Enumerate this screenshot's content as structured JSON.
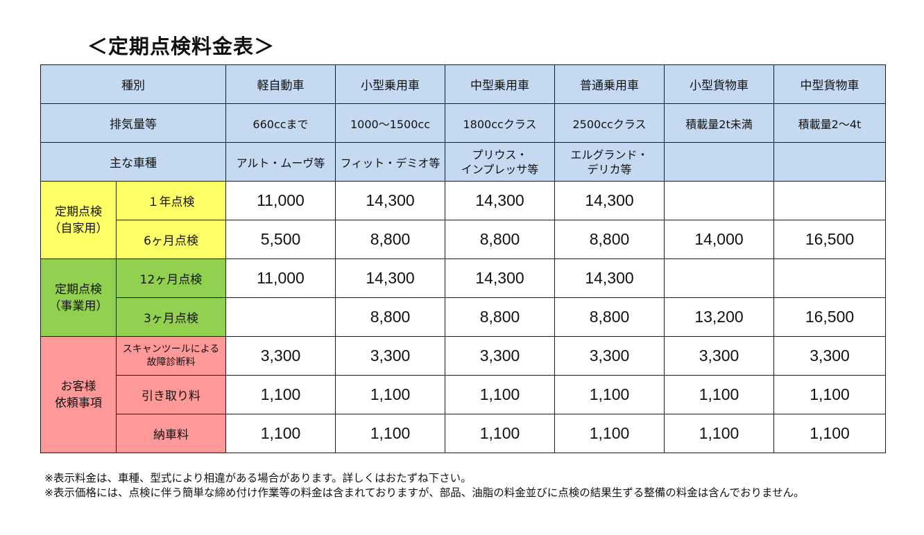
{
  "title": "＜定期点検料金表＞",
  "header": {
    "category_label": "種別",
    "displacement_label": "排気量等",
    "models_label": "主な車種",
    "columns": [
      {
        "type": "軽自動車",
        "displacement": "660ccまで",
        "models_line1": "アルト・ムーヴ等",
        "models_line2": ""
      },
      {
        "type": "小型乗用車",
        "displacement": "1000～1500cc",
        "models_line1": "フィット・デミオ等",
        "models_line2": ""
      },
      {
        "type": "中型乗用車",
        "displacement": "1800ccクラス",
        "models_line1": "プリウス・",
        "models_line2": "インプレッサ等"
      },
      {
        "type": "普通乗用車",
        "displacement": "2500ccクラス",
        "models_line1": "エルグランド・",
        "models_line2": "デリカ等"
      },
      {
        "type": "小型貨物車",
        "displacement": "積載量2t未満",
        "models_line1": "",
        "models_line2": ""
      },
      {
        "type": "中型貨物車",
        "displacement": "積載量2～4t",
        "models_line1": "",
        "models_line2": ""
      }
    ]
  },
  "groups": {
    "private": {
      "line1": "定期点検",
      "line2": "（自家用）",
      "color": "#ffff66"
    },
    "business": {
      "line1": "定期点検",
      "line2": "（事業用）",
      "color": "#92d050"
    },
    "customer": {
      "line1": "お客様",
      "line2": "依頼事項",
      "color": "#ff9999"
    }
  },
  "header_color": "#c5d9f1",
  "rows": [
    {
      "label": "１年点検",
      "values": [
        "11,000",
        "14,300",
        "14,300",
        "14,300",
        "",
        ""
      ]
    },
    {
      "label": "6ヶ月点検",
      "values": [
        "5,500",
        "8,800",
        "8,800",
        "8,800",
        "14,000",
        "16,500"
      ]
    },
    {
      "label": "12ヶ月点検",
      "values": [
        "11,000",
        "14,300",
        "14,300",
        "14,300",
        "",
        ""
      ]
    },
    {
      "label": "3ヶ月点検",
      "values": [
        "",
        "8,800",
        "8,800",
        "8,800",
        "13,200",
        "16,500"
      ]
    },
    {
      "label_line1": "スキャンツールによる",
      "label_line2": "故障診断料",
      "values": [
        "3,300",
        "3,300",
        "3,300",
        "3,300",
        "3,300",
        "3,300"
      ]
    },
    {
      "label": "引き取り料",
      "values": [
        "1,100",
        "1,100",
        "1,100",
        "1,100",
        "1,100",
        "1,100"
      ]
    },
    {
      "label": "納車料",
      "values": [
        "1,100",
        "1,100",
        "1,100",
        "1,100",
        "1,100",
        "1,100"
      ]
    }
  ],
  "notes": [
    "※表示料金は、車種、型式により相違がある場合があります。詳しくはおたずね下さい。",
    "※表示価格には、点検に伴う簡単な締め付け作業等の料金は含まれておりますが、部品、油脂の料金並びに点検の結果生ずる整備の料金は含んでおりません。"
  ]
}
